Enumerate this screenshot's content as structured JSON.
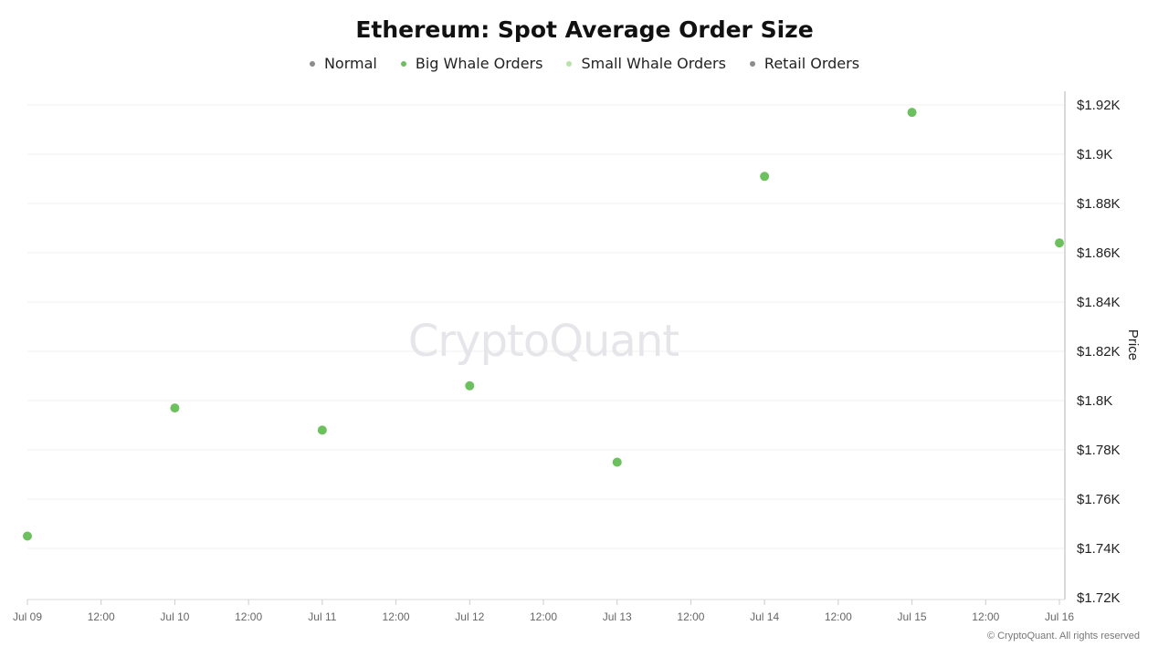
{
  "chart_data": {
    "type": "scatter",
    "title": "Ethereum: Spot Average Order Size",
    "legend_placement": "top-center",
    "legend": [
      {
        "name": "Normal",
        "color": "#8c8c8c"
      },
      {
        "name": "Big Whale Orders",
        "color": "#6cc05e"
      },
      {
        "name": "Small Whale Orders",
        "color": "#b5e3a8"
      },
      {
        "name": "Retail Orders",
        "color": "#8c8c8c"
      }
    ],
    "x_ticks": [
      "Jul 09",
      "12:00",
      "Jul 10",
      "12:00",
      "Jul 11",
      "12:00",
      "Jul 12",
      "12:00",
      "Jul 13",
      "12:00",
      "Jul 14",
      "12:00",
      "Jul 15",
      "12:00",
      "Jul 16"
    ],
    "xlim": [
      "2023-07-09",
      "2023-07-16"
    ],
    "ylabel": "Price",
    "y_axis_side": "right",
    "ylim": [
      1720,
      1925
    ],
    "y_ticks": [
      1720,
      1740,
      1760,
      1780,
      1800,
      1820,
      1840,
      1860,
      1880,
      1900,
      1920
    ],
    "y_tick_labels": [
      "$1.72K",
      "$1.74K",
      "$1.76K",
      "$1.78K",
      "$1.8K",
      "$1.82K",
      "$1.84K",
      "$1.86K",
      "$1.88K",
      "$1.9K",
      "$1.92K"
    ],
    "grid": true,
    "series": [
      {
        "name": "Big Whale Orders",
        "color": "#6cc05e",
        "points": [
          {
            "x": "2023-07-09",
            "y": 1745
          },
          {
            "x": "2023-07-10",
            "y": 1797
          },
          {
            "x": "2023-07-11",
            "y": 1788
          },
          {
            "x": "2023-07-12",
            "y": 1806
          },
          {
            "x": "2023-07-13",
            "y": 1775
          },
          {
            "x": "2023-07-14",
            "y": 1891
          },
          {
            "x": "2023-07-15",
            "y": 1917
          },
          {
            "x": "2023-07-16",
            "y": 1864
          }
        ]
      }
    ]
  },
  "watermark": "CryptoQuant",
  "copyright": "© CryptoQuant. All rights reserved"
}
